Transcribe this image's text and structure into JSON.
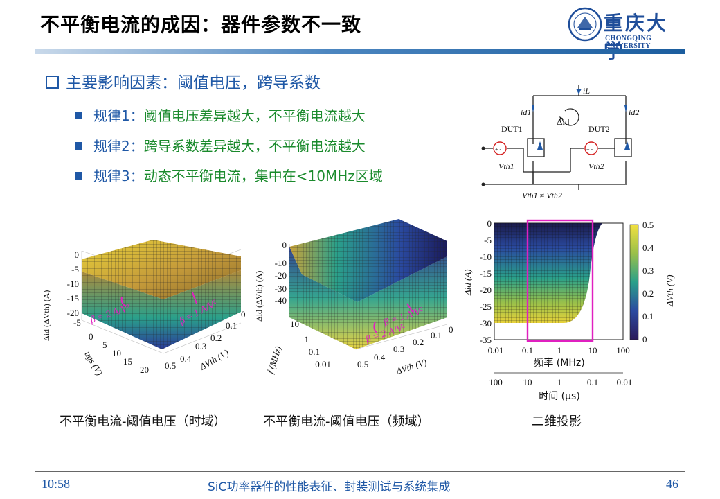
{
  "title": "不平衡电流的成因：器件参数不一致",
  "logo": {
    "cn": "重庆大学",
    "en": "CHONGQING UNIVERSITY"
  },
  "heading": "主要影响因素：阈值电压，跨导系数",
  "rules": [
    {
      "prefix": "规律1：",
      "text": "阈值电压差异越大，不平衡电流越大",
      "highlight": ""
    },
    {
      "prefix": "规律2：",
      "text": "跨导系数差异越大，不平衡电流越大",
      "highlight": ""
    },
    {
      "prefix": "规律3：",
      "text": "动态不平衡电流，",
      "highlight": "集中在<10MHz区域"
    }
  ],
  "circuit": {
    "i_L": "iL",
    "i_d1": "id1",
    "i_d2": "id2",
    "delta_id": "Δid",
    "dut1": "DUT1",
    "dut2": "DUT2",
    "vth1": "Vth1",
    "vth2": "Vth2",
    "condition": "Vth1 ≠ Vth2"
  },
  "plot1": {
    "zlabel": "Δid (ΔVth) (A)",
    "z_ticks": [
      "0",
      "-5",
      "-10",
      "-15",
      "-20"
    ],
    "x_label": "ugs (V)",
    "x_ticks": [
      "-5",
      "0",
      "5",
      "10",
      "15",
      "20"
    ],
    "y_label": "ΔVth (V)",
    "y_ticks": [
      "0.5",
      "0.4",
      "0.3",
      "0.2",
      "0.1",
      "0"
    ],
    "anno1": "β = 2 A/V²",
    "anno2": "β = 1 A/V²"
  },
  "plot2": {
    "zlabel": "Δid (ΔVth) (A)",
    "z_ticks": [
      "0",
      "-10",
      "-20",
      "-30",
      "-40"
    ],
    "z_top": "0",
    "f_label": "f (MHz)",
    "f_ticks": [
      "10",
      "1",
      "0.1",
      "0.01"
    ],
    "y_label": "ΔVth (V)",
    "y_ticks": [
      "0.5",
      "0.4",
      "0.3",
      "0.2",
      "0.1",
      "0"
    ],
    "anno1": "β = 1 A/V²",
    "anno2": "β = 2 A/V²"
  },
  "plot3": {
    "ylabel": "Δid (A)",
    "y_ticks": [
      "0",
      "-5",
      "-10",
      "-15",
      "-20",
      "-25",
      "-30",
      "-35"
    ],
    "x_ticks": [
      "0.01",
      "0.1",
      "1",
      "10",
      "100"
    ],
    "x_label": "频率 (MHz)",
    "t_ticks": [
      "100",
      "10",
      "1",
      "0.1",
      "0.01"
    ],
    "t_label": "时间 (μs)",
    "cbar_ticks": [
      "0.5",
      "0.4",
      "0.3",
      "0.2",
      "0.1",
      "0"
    ],
    "cbar_label": "ΔVth (V)"
  },
  "captions": {
    "c1": "不平衡电流-阈值电压（时域）",
    "c2": "不平衡电流-阈值电压（频域）",
    "c3": "二维投影"
  },
  "footer": {
    "time": "10:58",
    "course": "SiC功率器件的性能表征、封装测试与系统集成",
    "page": "46"
  },
  "colors": {
    "title_blue": "#1f58a6",
    "highlight_green": "#1a8a2c",
    "annotation_magenta": "#e020c0"
  }
}
